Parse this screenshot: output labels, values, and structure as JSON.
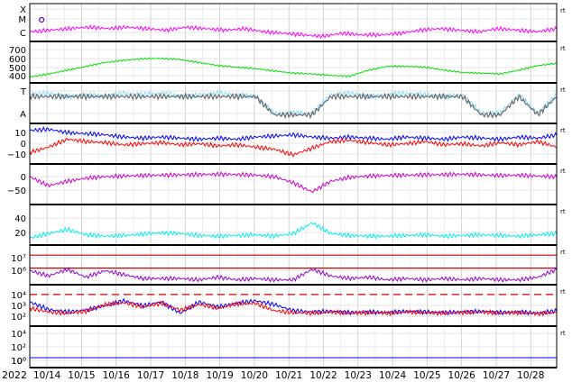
{
  "chart_data": {
    "type": "line",
    "year_label": "2022",
    "right_tag": "rt",
    "x_axis": {
      "start": "2022-10-13T12:00",
      "end": "2022-10-28T18:00",
      "ticks": [
        "10/14",
        "10/15",
        "10/16",
        "10/17",
        "10/18",
        "10/19",
        "10/20",
        "10/21",
        "10/22",
        "10/23",
        "10/24",
        "10/25",
        "10/26",
        "10/27",
        "10/28"
      ],
      "grid": true
    },
    "panels": [
      {
        "id": "xray",
        "ytick_labels": [
          "X",
          "M",
          "C"
        ],
        "series": [
          {
            "color": "#ff00ff",
            "values": [
              0.2,
              0.25,
              0.3,
              0.35,
              0.3,
              0.35,
              0.3,
              0.25,
              0.35,
              0.3,
              0.25,
              0.3,
              0.2,
              0.15,
              0.1,
              0.05,
              0.15,
              0.1,
              0.1,
              0.15,
              0.25,
              0.3,
              0.25,
              0.2,
              0.3,
              0.25,
              0.2,
              0.3
            ]
          }
        ],
        "marker": {
          "label": "M",
          "day": "10/14"
        }
      },
      {
        "id": "wind_speed",
        "ytick_labels": [
          "700",
          "600",
          "500",
          "400"
        ],
        "ylim": [
          300,
          750
        ],
        "series": [
          {
            "color": "#00e000",
            "values": [
              330,
              370,
              420,
              470,
              520,
              550,
              570,
              575,
              560,
              520,
              480,
              460,
              440,
              410,
              380,
              370,
              350,
              340,
              420,
              470,
              470,
              460,
              420,
              390,
              380,
              370,
              420,
              480,
              510
            ]
          }
        ]
      },
      {
        "id": "orientation",
        "ytick_labels": [
          "T",
          "A"
        ],
        "series": [
          {
            "color": "#88ddff",
            "values": [
              0.75,
              0.8,
              0.7,
              0.75,
              0.7,
              0.8,
              0.75,
              0.8,
              0.7,
              0.75,
              0.8,
              0.75,
              0.7,
              0.2,
              0.2,
              0.2,
              0.75,
              0.8,
              0.7,
              0.75,
              0.8,
              0.75,
              0.7,
              0.75,
              0.2,
              0.2,
              0.75,
              0.2,
              0.75
            ]
          },
          {
            "color": "#6a6a6a",
            "values": [
              0.7,
              0.7,
              0.7,
              0.7,
              0.7,
              0.7,
              0.7,
              0.7,
              0.7,
              0.7,
              0.7,
              0.7,
              0.7,
              0.15,
              0.15,
              0.15,
              0.7,
              0.7,
              0.7,
              0.7,
              0.7,
              0.7,
              0.7,
              0.7,
              0.15,
              0.15,
              0.7,
              0.15,
              0.7
            ]
          }
        ]
      },
      {
        "id": "bz",
        "ytick_labels": [
          "10",
          "0",
          "−10"
        ],
        "ylim": [
          -15,
          15
        ],
        "series": [
          {
            "color": "#0000ff",
            "values": [
              12,
              13,
              10,
              9,
              8,
              6,
              5,
              6,
              5,
              4,
              5,
              4,
              6,
              7,
              8,
              6,
              5,
              6,
              5,
              4,
              6,
              5,
              4,
              6,
              5,
              4,
              6,
              5,
              8
            ]
          },
          {
            "color": "#ff0000",
            "values": [
              -8,
              -3,
              4,
              2,
              1,
              -1,
              0,
              1,
              -1,
              0,
              -2,
              -1,
              -3,
              -5,
              -10,
              -4,
              2,
              3,
              1,
              -1,
              0,
              2,
              -1,
              0,
              -2,
              1,
              -1,
              2,
              -3
            ]
          }
        ]
      },
      {
        "id": "angle",
        "ytick_labels": [
          "0",
          "−50"
        ],
        "ylim": [
          -90,
          20
        ],
        "series": [
          {
            "color": "#cc00cc",
            "values": [
              -10,
              -40,
              -25,
              -15,
              -10,
              -8,
              -6,
              -5,
              -4,
              -3,
              -2,
              -3,
              -5,
              -10,
              -30,
              -60,
              -25,
              -12,
              -8,
              -6,
              -5,
              -4,
              -3,
              -2,
              -4,
              -6,
              -5,
              -8,
              -10
            ]
          }
        ]
      },
      {
        "id": "flux",
        "ytick_labels": [
          "40",
          "20"
        ],
        "ylim": [
          0,
          50
        ],
        "series": [
          {
            "color": "#00eeee",
            "values": [
              5,
              12,
              18,
              10,
              8,
              9,
              11,
              13,
              12,
              9,
              8,
              9,
              10,
              8,
              12,
              28,
              12,
              9,
              8,
              8,
              9,
              10,
              8,
              9,
              10,
              9,
              8,
              10,
              12
            ]
          }
        ]
      },
      {
        "id": "electrons",
        "ytick_labels": [
          "10⁷",
          "10⁶"
        ],
        "ylim": [
          5,
          7.5
        ],
        "reference_lines": [
          {
            "color": "#cc0000",
            "value": 7
          },
          {
            "color": "#cc0000",
            "value": 6
          }
        ],
        "series": [
          {
            "color": "#9900cc",
            "values": [
              5.8,
              5.4,
              5.9,
              5.3,
              5.8,
              5.5,
              5.2,
              5.2,
              5.2,
              5.1,
              5.3,
              5.1,
              5.2,
              5.1,
              5.1,
              5.9,
              5.4,
              5.2,
              5.3,
              5.1,
              5.2,
              5.1,
              5.2,
              5.1,
              5.2,
              5.1,
              5.1,
              5.3,
              5.9
            ]
          }
        ]
      },
      {
        "id": "protons",
        "ytick_labels": [
          "10⁴",
          "10³",
          "10²",
          "10⁰"
        ],
        "ylim": [
          -0.5,
          5
        ],
        "reference_lines": [
          {
            "color": "#cc0000",
            "value": 4,
            "dashed": true
          }
        ],
        "series": [
          {
            "color": "#0000ff",
            "values": [
              2.8,
              1.6,
              1.2,
              1.5,
              2.2,
              3.0,
              2.2,
              2.8,
              1.0,
              2.8,
              2.0,
              2.6,
              3.0,
              2.4,
              1.4,
              1.2,
              1.3,
              1.1,
              1.2,
              1.1,
              1.3,
              1.2,
              1.1,
              1.2,
              1.3,
              1.1,
              1.2,
              1.0,
              1.4
            ]
          },
          {
            "color": "#ff0000",
            "values": [
              1.8,
              1.2,
              1.0,
              1.3,
              2.4,
              2.7,
              2.0,
              2.6,
              1.5,
              2.4,
              1.8,
              2.5,
              2.6,
              1.4,
              1.1,
              1.0,
              1.2,
              1.0,
              1.1,
              1.0,
              1.2,
              1.1,
              1.0,
              1.1,
              1.2,
              1.0,
              1.1,
              0.9,
              1.2
            ]
          }
        ]
      },
      {
        "id": "neutrons",
        "ytick_labels": [
          "10⁴",
          "10²",
          "10⁰"
        ],
        "ylim": [
          -1,
          5
        ],
        "series": [
          {
            "color": "#0000ff",
            "values": [
              0.1,
              0.1,
              0.1,
              0.1,
              0.1,
              0.1,
              0.1,
              0.1,
              0.1,
              0.1,
              0.1,
              0.1,
              0.1,
              0.1,
              0.1,
              0.1,
              0.1,
              0.1,
              0.1,
              0.1,
              0.1,
              0.1,
              0.1,
              0.1,
              0.1,
              0.1,
              0.1,
              0.1,
              0.1
            ]
          }
        ]
      }
    ]
  }
}
